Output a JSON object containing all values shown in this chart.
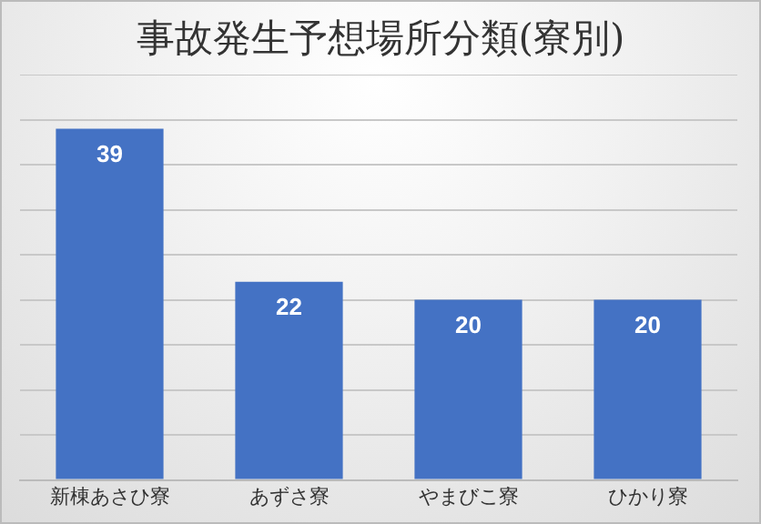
{
  "chart_data": {
    "type": "bar",
    "title": "事故発生予想場所分類(寮別)",
    "categories": [
      "新棟あさひ寮",
      "あずさ寮",
      "やまびこ寮",
      "ひかり寮"
    ],
    "values": [
      39,
      22,
      20,
      20
    ],
    "color": "#4472c4",
    "data_labels": true,
    "ylim": [
      0,
      45
    ],
    "yticks": [
      {
        "value": 0,
        "label": null
      },
      {
        "value": 5,
        "label": null
      },
      {
        "value": 10,
        "label": null
      },
      {
        "value": 15,
        "label": null
      },
      {
        "value": 20,
        "label": null
      },
      {
        "value": 25,
        "label": null
      },
      {
        "value": 30,
        "label": null
      },
      {
        "value": 35,
        "label": null
      },
      {
        "value": 40,
        "label": null
      },
      {
        "value": 45,
        "label": null
      }
    ],
    "grid": "y",
    "tick_labels": "x",
    "legend": false
  }
}
